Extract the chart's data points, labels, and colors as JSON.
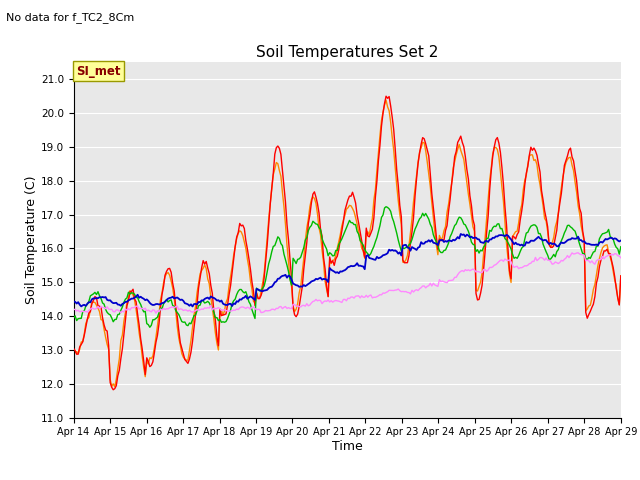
{
  "title": "Soil Temperatures Set 2",
  "subtitle": "No data for f_TC2_8Cm",
  "xlabel": "Time",
  "ylabel": "Soil Temperature (C)",
  "ylim": [
    11.0,
    21.5
  ],
  "yticks": [
    11.0,
    12.0,
    13.0,
    14.0,
    15.0,
    16.0,
    17.0,
    18.0,
    19.0,
    20.0,
    21.0
  ],
  "x_tick_labels": [
    "Apr 14",
    "Apr 15",
    "Apr 16",
    "Apr 17",
    "Apr 18",
    "Apr 19",
    "Apr 20",
    "Apr 21",
    "Apr 22",
    "Apr 23",
    "Apr 24",
    "Apr 25",
    "Apr 26",
    "Apr 27",
    "Apr 28",
    "Apr 29"
  ],
  "colors": {
    "TC2_2Cm": "#ff0000",
    "TC2_4Cm": "#ff8800",
    "TC2_16Cm": "#00bb00",
    "TC2_32Cm": "#0000cc",
    "TC2_50Cm": "#ff88ff"
  },
  "plot_bg_color": "#e8e8e8",
  "grid_color": "#ffffff",
  "annotation_box_facecolor": "#ffff99",
  "annotation_box_edgecolor": "#999900",
  "annotation_text": "SI_met",
  "annotation_text_color": "#880000",
  "line_width": 1.0
}
